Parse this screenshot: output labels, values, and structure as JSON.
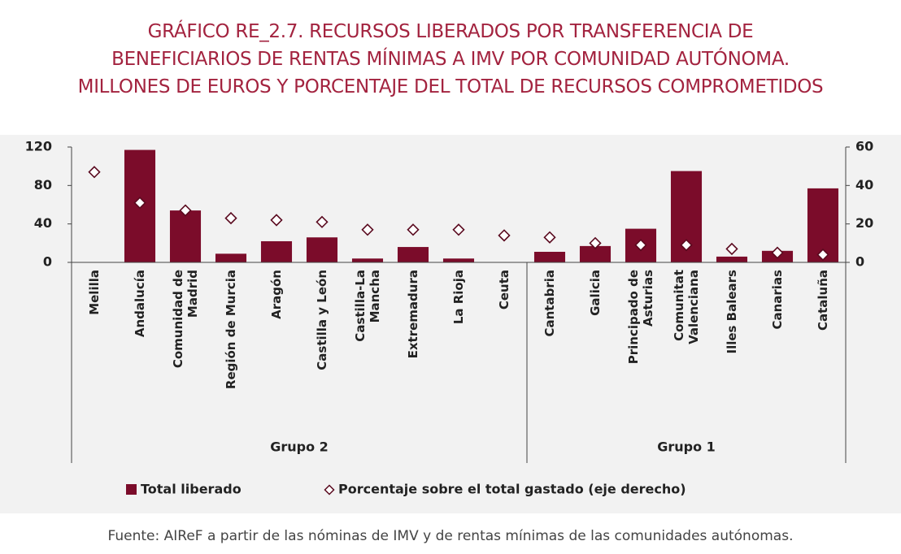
{
  "chart_data": {
    "type": "bar",
    "title": "GRÁFICO RE_2.7.  RECURSOS LIBERADOS POR TRANSFERENCIA DE\nBENEFICIARIOS DE RENTAS MÍNIMAS A IMV POR COMUNIDAD AUTÓNOMA.\nMILLONES DE EUROS Y PORCENTAJE DEL TOTAL DE RECURSOS COMPROMETIDOS",
    "source": "Fuente: AIReF a partir de las nóminas de IMV y de rentas mínimas de las comunidades autónomas.",
    "groups": [
      {
        "label": "Grupo 2",
        "categories": [
          "Melilla",
          "Andalucía",
          "Comunidad de\nMadrid",
          "Región de Murcia",
          "Aragón",
          "Castilla y León",
          "Castilla-La\nMancha",
          "Extremadura",
          "La Rioja",
          "Ceuta"
        ]
      },
      {
        "label": "Grupo 1",
        "categories": [
          "Cantabria",
          "Galicia",
          "Principado de\nAsturias",
          "Comunitat\nValenciana",
          "Illes Balears",
          "Canarias",
          "Cataluña"
        ]
      }
    ],
    "series": [
      {
        "name": "Total liberado",
        "type": "bar",
        "color": "#7b0c2a",
        "axis": "y",
        "values": [
          0,
          117,
          54,
          9,
          22,
          26,
          4,
          16,
          4,
          0,
          11,
          17,
          35,
          95,
          6,
          12,
          77
        ]
      },
      {
        "name": "Porcentaje sobre el total gastado (eje derecho)",
        "type": "scatter",
        "color": "#5a0a1f",
        "axis": "y2",
        "values": [
          47,
          31,
          27,
          23,
          22,
          21,
          17,
          17,
          17,
          14,
          13,
          10,
          9,
          9,
          7,
          5,
          4
        ]
      }
    ],
    "ylim": [
      0,
      120
    ],
    "yticks": [
      0,
      40,
      80,
      120
    ],
    "y2lim": [
      0,
      60
    ],
    "y2ticks": [
      0,
      20,
      40,
      60
    ]
  }
}
